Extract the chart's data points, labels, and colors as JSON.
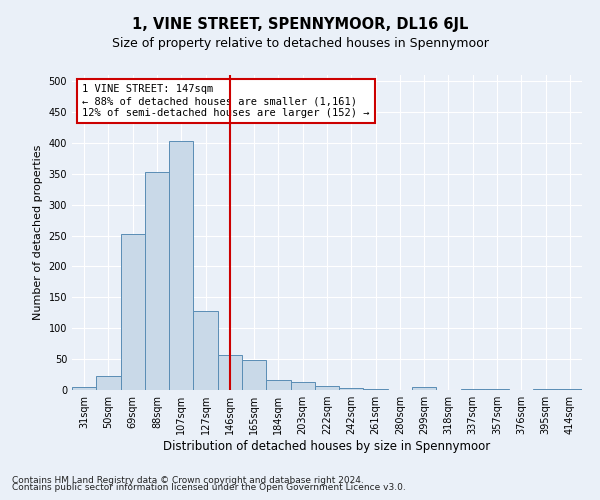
{
  "title": "1, VINE STREET, SPENNYMOOR, DL16 6JL",
  "subtitle": "Size of property relative to detached houses in Spennymoor",
  "xlabel": "Distribution of detached houses by size in Spennymoor",
  "ylabel": "Number of detached properties",
  "categories": [
    "31sqm",
    "50sqm",
    "69sqm",
    "88sqm",
    "107sqm",
    "127sqm",
    "146sqm",
    "165sqm",
    "184sqm",
    "203sqm",
    "222sqm",
    "242sqm",
    "261sqm",
    "280sqm",
    "299sqm",
    "318sqm",
    "337sqm",
    "357sqm",
    "376sqm",
    "395sqm",
    "414sqm"
  ],
  "values": [
    5,
    22,
    252,
    353,
    403,
    128,
    57,
    48,
    16,
    13,
    7,
    3,
    2,
    0,
    5,
    0,
    2,
    2,
    0,
    2,
    2
  ],
  "bar_color": "#c9d9e8",
  "bar_edge_color": "#5a8db5",
  "vline_x": 6,
  "vline_color": "#cc0000",
  "annotation_text": "1 VINE STREET: 147sqm\n← 88% of detached houses are smaller (1,161)\n12% of semi-detached houses are larger (152) →",
  "annotation_box_color": "#ffffff",
  "annotation_box_edge_color": "#cc0000",
  "ylim": [
    0,
    510
  ],
  "yticks": [
    0,
    50,
    100,
    150,
    200,
    250,
    300,
    350,
    400,
    450,
    500
  ],
  "background_color": "#eaf0f8",
  "plot_bg_color": "#eaf0f8",
  "footer_line1": "Contains HM Land Registry data © Crown copyright and database right 2024.",
  "footer_line2": "Contains public sector information licensed under the Open Government Licence v3.0.",
  "title_fontsize": 10.5,
  "subtitle_fontsize": 9,
  "xlabel_fontsize": 8.5,
  "ylabel_fontsize": 8,
  "tick_fontsize": 7,
  "footer_fontsize": 6.5,
  "annotation_fontsize": 7.5
}
